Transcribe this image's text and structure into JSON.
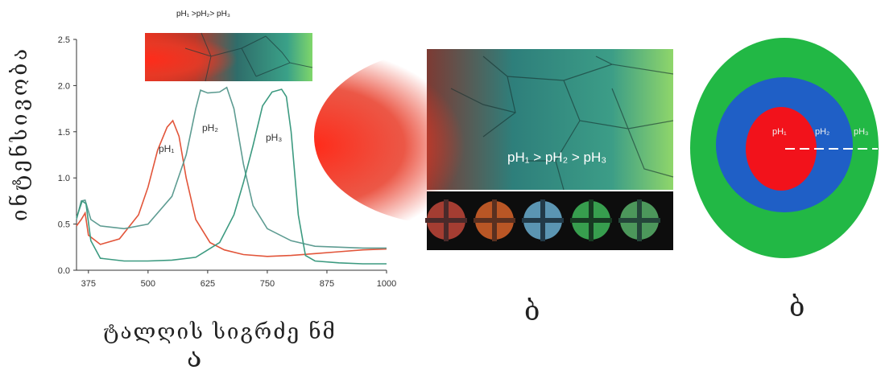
{
  "chart_data": {
    "type": "line",
    "xlabel": "ტალღის სიგრძე ნმ",
    "ylabel": "ინტენსივობა",
    "xlim": [
      350,
      1000
    ],
    "ylim": [
      0.0,
      2.5
    ],
    "x_ticks": [
      "375",
      "500",
      "625",
      "750",
      "875",
      "1000"
    ],
    "y_ticks": [
      "0.0",
      "0.5",
      "1.0",
      "1.5",
      "2.0",
      "2.5"
    ],
    "grid": false,
    "series": [
      {
        "name": "pH1",
        "color": "#e2553a",
        "points": [
          [
            350,
            0.48
          ],
          [
            360,
            0.55
          ],
          [
            368,
            0.62
          ],
          [
            375,
            0.38
          ],
          [
            400,
            0.28
          ],
          [
            440,
            0.34
          ],
          [
            480,
            0.6
          ],
          [
            500,
            0.9
          ],
          [
            520,
            1.3
          ],
          [
            540,
            1.55
          ],
          [
            552,
            1.62
          ],
          [
            565,
            1.45
          ],
          [
            580,
            1.0
          ],
          [
            600,
            0.55
          ],
          [
            630,
            0.3
          ],
          [
            660,
            0.22
          ],
          [
            700,
            0.17
          ],
          [
            750,
            0.15
          ],
          [
            800,
            0.16
          ],
          [
            850,
            0.18
          ],
          [
            900,
            0.2
          ],
          [
            950,
            0.22
          ],
          [
            1000,
            0.23
          ]
        ]
      },
      {
        "name": "pH2",
        "color": "#5e9c92",
        "points": [
          [
            350,
            0.55
          ],
          [
            360,
            0.75
          ],
          [
            368,
            0.76
          ],
          [
            380,
            0.55
          ],
          [
            400,
            0.48
          ],
          [
            450,
            0.45
          ],
          [
            500,
            0.5
          ],
          [
            550,
            0.8
          ],
          [
            580,
            1.25
          ],
          [
            600,
            1.75
          ],
          [
            610,
            1.95
          ],
          [
            625,
            1.92
          ],
          [
            650,
            1.93
          ],
          [
            665,
            1.98
          ],
          [
            680,
            1.75
          ],
          [
            700,
            1.15
          ],
          [
            720,
            0.7
          ],
          [
            750,
            0.45
          ],
          [
            800,
            0.32
          ],
          [
            850,
            0.26
          ],
          [
            900,
            0.25
          ],
          [
            950,
            0.24
          ],
          [
            1000,
            0.24
          ]
        ]
      },
      {
        "name": "pH3",
        "color": "#3c9a80",
        "points": [
          [
            350,
            0.57
          ],
          [
            362,
            0.75
          ],
          [
            370,
            0.72
          ],
          [
            380,
            0.32
          ],
          [
            400,
            0.13
          ],
          [
            450,
            0.1
          ],
          [
            500,
            0.1
          ],
          [
            550,
            0.11
          ],
          [
            600,
            0.14
          ],
          [
            650,
            0.3
          ],
          [
            680,
            0.6
          ],
          [
            700,
            0.95
          ],
          [
            720,
            1.35
          ],
          [
            740,
            1.78
          ],
          [
            760,
            1.93
          ],
          [
            780,
            1.96
          ],
          [
            790,
            1.88
          ],
          [
            800,
            1.5
          ],
          [
            815,
            0.6
          ],
          [
            830,
            0.16
          ],
          [
            850,
            0.1
          ],
          [
            900,
            0.08
          ],
          [
            950,
            0.07
          ],
          [
            1000,
            0.07
          ]
        ]
      }
    ],
    "series_labels": [
      "pH₁",
      "pH₂",
      "pH₃"
    ],
    "inset_caption": "pH₁ >pH₂> pH₃"
  },
  "panels": {
    "a_label": "ა",
    "b_label": "ბ",
    "c_label": "ბ",
    "photo_caption": "pH₁ > pH₂ > pH₃"
  },
  "disk": {
    "labels": [
      "pH₁",
      "pH₂",
      "pH₃"
    ],
    "colors": {
      "outer": "#22b845",
      "middle": "#1f5fc6",
      "inner": "#f2121b"
    }
  },
  "colors": {
    "grad_red": "#e8311f",
    "grad_teal": "#2e8f86",
    "grad_green": "#8fd66a"
  }
}
